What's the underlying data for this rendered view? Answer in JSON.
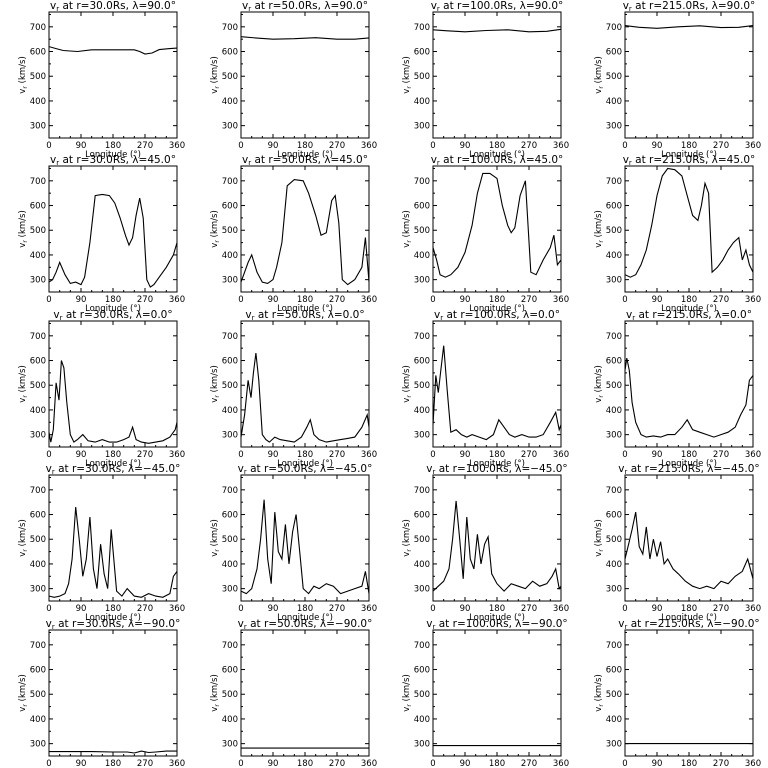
{
  "chart_data": [
    {
      "type": "line",
      "title": "vr at r=30.0Rs, λ=90.0°",
      "r": "30.0",
      "lat": "90.0",
      "xlabel": "Longitude (°)",
      "ylabel": "vr (km/s)",
      "xlim": [
        0,
        360
      ],
      "ylim": [
        250,
        760
      ],
      "x": [
        0,
        20,
        40,
        80,
        120,
        180,
        240,
        255,
        270,
        290,
        310,
        340,
        360
      ],
      "y": [
        620,
        612,
        604,
        600,
        607,
        607,
        607,
        600,
        590,
        594,
        608,
        612,
        614
      ]
    },
    {
      "type": "line",
      "title": "vr at r=50.0Rs, λ=90.0°",
      "r": "50.0",
      "lat": "90.0",
      "xlabel": "Longitude (°)",
      "ylabel": "vr (km/s)",
      "xlim": [
        0,
        360
      ],
      "ylim": [
        250,
        760
      ],
      "x": [
        0,
        40,
        90,
        150,
        210,
        270,
        320,
        360
      ],
      "y": [
        660,
        655,
        650,
        652,
        656,
        650,
        650,
        655
      ]
    },
    {
      "type": "line",
      "title": "vr at r=100.0Rs, λ=90.0°",
      "r": "100.0",
      "lat": "90.0",
      "xlabel": "Longitude (°)",
      "ylabel": "vr (km/s)",
      "xlim": [
        0,
        360
      ],
      "ylim": [
        250,
        760
      ],
      "x": [
        0,
        40,
        90,
        150,
        210,
        270,
        320,
        360
      ],
      "y": [
        688,
        684,
        680,
        685,
        688,
        680,
        682,
        690
      ]
    },
    {
      "type": "line",
      "title": "vr at r=215.0Rs, λ=90.0°",
      "r": "215.0",
      "lat": "90.0",
      "xlabel": "Longitude (°)",
      "ylabel": "vr (km/s)",
      "xlim": [
        0,
        360
      ],
      "ylim": [
        250,
        760
      ],
      "x": [
        0,
        40,
        90,
        150,
        210,
        270,
        320,
        360
      ],
      "y": [
        705,
        698,
        694,
        700,
        704,
        697,
        698,
        705
      ]
    },
    {
      "type": "line",
      "title": "vr at r=30.0Rs, λ=45.0°",
      "r": "30.0",
      "lat": "45.0",
      "xlabel": "Longitude (°)",
      "ylabel": "vr (km/s)",
      "xlim": [
        0,
        360
      ],
      "ylim": [
        250,
        760
      ],
      "x": [
        0,
        10,
        20,
        30,
        45,
        60,
        75,
        90,
        100,
        115,
        130,
        150,
        170,
        185,
        200,
        215,
        225,
        235,
        245,
        255,
        265,
        275,
        285,
        295,
        310,
        330,
        350,
        360
      ],
      "y": [
        290,
        300,
        330,
        370,
        320,
        285,
        290,
        280,
        310,
        450,
        640,
        645,
        640,
        610,
        550,
        480,
        440,
        470,
        560,
        630,
        550,
        300,
        270,
        280,
        310,
        350,
        400,
        450
      ]
    },
    {
      "type": "line",
      "title": "vr at r=50.0Rs, λ=45.0°",
      "r": "50.0",
      "lat": "45.0",
      "xlabel": "Longitude (°)",
      "ylabel": "vr (km/s)",
      "xlim": [
        0,
        360
      ],
      "ylim": [
        250,
        760
      ],
      "x": [
        0,
        10,
        20,
        30,
        45,
        60,
        75,
        90,
        100,
        115,
        130,
        150,
        175,
        190,
        210,
        225,
        240,
        255,
        265,
        275,
        285,
        300,
        320,
        340,
        350,
        360
      ],
      "y": [
        290,
        330,
        370,
        400,
        330,
        290,
        285,
        300,
        350,
        450,
        680,
        705,
        700,
        650,
        560,
        480,
        490,
        620,
        640,
        530,
        300,
        280,
        300,
        350,
        470,
        290
      ]
    },
    {
      "type": "line",
      "title": "vr at r=100.0Rs, λ=45.0°",
      "r": "100.0",
      "lat": "45.0",
      "xlabel": "Longitude (°)",
      "ylabel": "vr (km/s)",
      "xlim": [
        0,
        360
      ],
      "ylim": [
        250,
        760
      ],
      "x": [
        0,
        10,
        20,
        35,
        50,
        70,
        90,
        110,
        125,
        140,
        160,
        180,
        195,
        210,
        220,
        230,
        245,
        260,
        275,
        290,
        310,
        330,
        340,
        350,
        360
      ],
      "y": [
        430,
        380,
        320,
        310,
        320,
        350,
        410,
        520,
        650,
        730,
        730,
        710,
        600,
        520,
        490,
        510,
        640,
        700,
        330,
        320,
        380,
        430,
        480,
        360,
        380
      ]
    },
    {
      "type": "line",
      "title": "vr at r=215.0Rs, λ=45.0°",
      "r": "215.0",
      "lat": "45.0",
      "xlabel": "Longitude (°)",
      "ylabel": "vr (km/s)",
      "xlim": [
        0,
        360
      ],
      "ylim": [
        250,
        760
      ],
      "x": [
        0,
        15,
        30,
        45,
        60,
        75,
        90,
        105,
        120,
        140,
        160,
        175,
        190,
        205,
        215,
        225,
        235,
        245,
        260,
        275,
        290,
        305,
        320,
        330,
        340,
        350,
        360
      ],
      "y": [
        320,
        310,
        320,
        360,
        420,
        520,
        640,
        720,
        750,
        745,
        720,
        640,
        560,
        540,
        600,
        690,
        650,
        330,
        350,
        380,
        420,
        450,
        470,
        380,
        420,
        360,
        330
      ]
    },
    {
      "type": "line",
      "title": "vr at r=30.0Rs, λ=0.0°",
      "r": "30.0",
      "lat": "0.0",
      "xlabel": "Longitude (°)",
      "ylabel": "vr (km/s)",
      "xlim": [
        0,
        360
      ],
      "ylim": [
        250,
        760
      ],
      "x": [
        0,
        5,
        12,
        20,
        28,
        35,
        42,
        50,
        60,
        70,
        80,
        95,
        110,
        130,
        150,
        170,
        190,
        210,
        225,
        235,
        245,
        260,
        280,
        300,
        320,
        340,
        355,
        360
      ],
      "y": [
        310,
        270,
        320,
        510,
        440,
        600,
        570,
        430,
        300,
        270,
        280,
        300,
        275,
        270,
        280,
        270,
        270,
        280,
        290,
        330,
        280,
        270,
        265,
        270,
        275,
        290,
        320,
        350
      ]
    },
    {
      "type": "line",
      "title": "vr at r=50.0Rs, λ=0.0°",
      "r": "50.0",
      "lat": "0.0",
      "xlabel": "Longitude (°)",
      "ylabel": "vr (km/s)",
      "xlim": [
        0,
        360
      ],
      "ylim": [
        250,
        760
      ],
      "x": [
        0,
        10,
        20,
        28,
        35,
        42,
        50,
        60,
        70,
        80,
        95,
        110,
        130,
        150,
        170,
        185,
        195,
        205,
        220,
        240,
        260,
        280,
        300,
        320,
        340,
        355,
        360
      ],
      "y": [
        290,
        380,
        520,
        450,
        550,
        630,
        520,
        300,
        280,
        270,
        290,
        280,
        275,
        270,
        290,
        330,
        360,
        300,
        280,
        270,
        275,
        280,
        285,
        290,
        330,
        380,
        330
      ]
    },
    {
      "type": "line",
      "title": "vr at r=100.0Rs, λ=0.0°",
      "r": "100.0",
      "lat": "0.0",
      "xlabel": "Longitude (°)",
      "ylabel": "vr (km/s)",
      "xlim": [
        0,
        360
      ],
      "ylim": [
        250,
        760
      ],
      "x": [
        0,
        8,
        15,
        22,
        30,
        40,
        50,
        65,
        80,
        95,
        110,
        130,
        150,
        170,
        185,
        200,
        215,
        230,
        250,
        270,
        290,
        310,
        330,
        345,
        355,
        360
      ],
      "y": [
        340,
        540,
        470,
        560,
        660,
        480,
        310,
        320,
        300,
        290,
        300,
        290,
        280,
        300,
        360,
        330,
        300,
        290,
        300,
        290,
        290,
        300,
        350,
        390,
        320,
        340
      ]
    },
    {
      "type": "line",
      "title": "vr at r=215.0Rs, λ=0.0°",
      "r": "215.0",
      "lat": "0.0",
      "xlabel": "Longitude (°)",
      "ylabel": "vr (km/s)",
      "xlim": [
        0,
        360
      ],
      "ylim": [
        250,
        760
      ],
      "x": [
        0,
        5,
        12,
        20,
        30,
        45,
        60,
        80,
        100,
        120,
        140,
        160,
        175,
        190,
        210,
        230,
        250,
        270,
        290,
        310,
        325,
        340,
        350,
        360
      ],
      "y": [
        560,
        610,
        560,
        430,
        350,
        300,
        290,
        295,
        290,
        300,
        300,
        330,
        360,
        320,
        310,
        300,
        290,
        300,
        310,
        330,
        380,
        420,
        520,
        540
      ]
    },
    {
      "type": "line",
      "title": "vr at r=30.0Rs, λ=−45.0°",
      "r": "30.0",
      "lat": "−45.0",
      "xlabel": "Longitude (°)",
      "ylabel": "vr (km/s)",
      "xlim": [
        0,
        360
      ],
      "ylim": [
        250,
        760
      ],
      "x": [
        0,
        15,
        30,
        45,
        55,
        65,
        75,
        85,
        95,
        105,
        115,
        125,
        135,
        145,
        155,
        165,
        175,
        190,
        205,
        220,
        240,
        260,
        280,
        300,
        320,
        340,
        350,
        360
      ],
      "y": [
        270,
        265,
        270,
        280,
        320,
        420,
        630,
        500,
        350,
        420,
        590,
        380,
        300,
        480,
        360,
        300,
        540,
        290,
        270,
        300,
        270,
        265,
        280,
        270,
        265,
        280,
        350,
        370
      ]
    },
    {
      "type": "line",
      "title": "vr at r=50.0Rs, λ=−45.0°",
      "r": "50.0",
      "lat": "−45.0",
      "xlabel": "Longitude (°)",
      "ylabel": "vr (km/s)",
      "xlim": [
        0,
        360
      ],
      "ylim": [
        250,
        760
      ],
      "x": [
        0,
        15,
        30,
        45,
        55,
        65,
        75,
        85,
        95,
        105,
        115,
        125,
        135,
        145,
        155,
        165,
        175,
        190,
        205,
        220,
        240,
        260,
        280,
        300,
        320,
        340,
        350,
        360
      ],
      "y": [
        290,
        280,
        300,
        380,
        500,
        660,
        420,
        320,
        610,
        450,
        420,
        560,
        400,
        530,
        600,
        450,
        300,
        280,
        310,
        300,
        320,
        310,
        280,
        290,
        300,
        310,
        370,
        280
      ]
    },
    {
      "type": "line",
      "title": "vr at r=100.0Rs, λ=−45.0°",
      "r": "100.0",
      "lat": "−45.0",
      "xlabel": "Longitude (°)",
      "ylabel": "vr (km/s)",
      "xlim": [
        0,
        360
      ],
      "ylim": [
        250,
        760
      ],
      "x": [
        0,
        15,
        30,
        45,
        55,
        65,
        75,
        85,
        95,
        105,
        115,
        125,
        135,
        145,
        155,
        165,
        180,
        200,
        220,
        240,
        260,
        280,
        300,
        320,
        335,
        345,
        355,
        360
      ],
      "y": [
        290,
        310,
        330,
        380,
        500,
        655,
        500,
        340,
        590,
        420,
        380,
        520,
        400,
        480,
        510,
        360,
        320,
        290,
        320,
        310,
        300,
        330,
        310,
        320,
        350,
        380,
        300,
        310
      ]
    },
    {
      "type": "line",
      "title": "vr at r=215.0Rs, λ=−45.0°",
      "r": "215.0",
      "lat": "−45.0",
      "xlabel": "Longitude (°)",
      "ylabel": "vr (km/s)",
      "xlim": [
        0,
        360
      ],
      "ylim": [
        250,
        760
      ],
      "x": [
        0,
        10,
        20,
        30,
        40,
        50,
        60,
        70,
        80,
        90,
        100,
        110,
        120,
        135,
        150,
        170,
        190,
        210,
        230,
        250,
        270,
        290,
        310,
        330,
        345,
        360
      ],
      "y": [
        420,
        480,
        540,
        610,
        470,
        440,
        550,
        420,
        500,
        430,
        490,
        400,
        420,
        380,
        360,
        330,
        310,
        300,
        310,
        300,
        330,
        320,
        350,
        370,
        420,
        340
      ]
    },
    {
      "type": "line",
      "title": "vr at r=30.0Rs, λ=−90.0°",
      "r": "30.0",
      "lat": "−90.0",
      "xlabel": "Longitude (°)",
      "ylabel": "vr (km/s)",
      "xlim": [
        0,
        360
      ],
      "ylim": [
        250,
        760
      ],
      "x": [
        0,
        60,
        120,
        180,
        220,
        240,
        260,
        280,
        300,
        330,
        360
      ],
      "y": [
        268,
        268,
        268,
        266,
        266,
        262,
        270,
        264,
        266,
        270,
        270
      ]
    },
    {
      "type": "line",
      "title": "vr at r=50.0Rs, λ=−90.0°",
      "r": "50.0",
      "lat": "−90.0",
      "xlabel": "Longitude (°)",
      "ylabel": "vr (km/s)",
      "xlim": [
        0,
        360
      ],
      "ylim": [
        250,
        760
      ],
      "x": [
        0,
        360
      ],
      "y": [
        282,
        282
      ]
    },
    {
      "type": "line",
      "title": "vr at r=100.0Rs, λ=−90.0°",
      "r": "100.0",
      "lat": "−90.0",
      "xlabel": "Longitude (°)",
      "ylabel": "vr (km/s)",
      "xlim": [
        0,
        360
      ],
      "ylim": [
        250,
        760
      ],
      "x": [
        0,
        360
      ],
      "y": [
        292,
        292
      ]
    },
    {
      "type": "line",
      "title": "vr at r=215.0Rs, λ=−90.0°",
      "r": "215.0",
      "lat": "−90.0",
      "xlabel": "Longitude (°)",
      "ylabel": "vr (km/s)",
      "xlim": [
        0,
        360
      ],
      "ylim": [
        250,
        760
      ],
      "x": [
        0,
        360
      ],
      "y": [
        300,
        300
      ]
    }
  ],
  "axes": {
    "xticks": [
      "0",
      "90",
      "180",
      "270",
      "360"
    ],
    "yticks": [
      "300",
      "400",
      "500",
      "600",
      "700"
    ],
    "xlabel": "Longitude (°)",
    "ylabel": "vr (km/s)"
  },
  "colors": {
    "line": "#000000",
    "background": "#ffffff"
  }
}
